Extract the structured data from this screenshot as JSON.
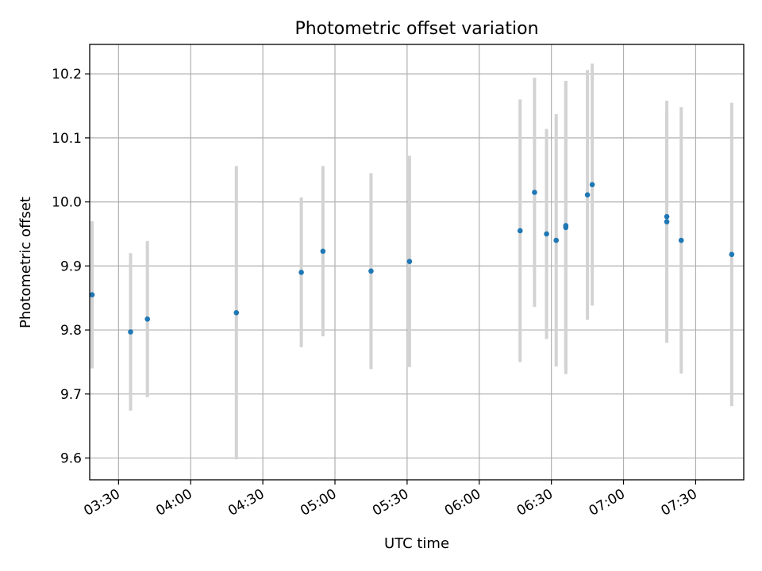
{
  "chart_data": {
    "type": "scatter",
    "title": "Photometric offset variation",
    "xlabel": "UTC time",
    "ylabel": "Photometric offset",
    "x_unit": "HH:MM",
    "xlim": [
      "03:18",
      "07:50"
    ],
    "ylim": [
      9.566,
      10.246
    ],
    "x_ticks": [
      "03:30",
      "04:00",
      "04:30",
      "05:00",
      "05:30",
      "06:00",
      "06:30",
      "07:00",
      "07:30"
    ],
    "y_ticks": [
      9.6,
      9.7,
      9.8,
      9.9,
      10.0,
      10.1,
      10.2
    ],
    "y_tick_labels": [
      "9.6",
      "9.7",
      "9.8",
      "9.9",
      "10.0",
      "10.1",
      "10.2"
    ],
    "grid": true,
    "point_color": "#1f77b4",
    "errorbar_color": "#d3d3d3",
    "points": [
      {
        "time": "03:19",
        "value": 9.855,
        "error": 0.115
      },
      {
        "time": "03:35",
        "value": 9.797,
        "error": 0.123
      },
      {
        "time": "03:42",
        "value": 9.817,
        "error": 0.122
      },
      {
        "time": "04:19",
        "value": 9.827,
        "error": 0.229
      },
      {
        "time": "04:46",
        "value": 9.89,
        "error": 0.117
      },
      {
        "time": "04:55",
        "value": 9.923,
        "error": 0.133
      },
      {
        "time": "05:15",
        "value": 9.892,
        "error": 0.153
      },
      {
        "time": "05:31",
        "value": 9.907,
        "error": 0.165
      },
      {
        "time": "06:17",
        "value": 9.955,
        "error": 0.205
      },
      {
        "time": "06:23",
        "value": 10.015,
        "error": 0.179
      },
      {
        "time": "06:28",
        "value": 9.95,
        "error": 0.164
      },
      {
        "time": "06:32",
        "value": 9.94,
        "error": 0.197
      },
      {
        "time": "06:36",
        "value": 9.96,
        "error": 0.229
      },
      {
        "time": "06:36",
        "value": 9.963,
        "error": 0.226
      },
      {
        "time": "06:45",
        "value": 10.011,
        "error": 0.195
      },
      {
        "time": "06:47",
        "value": 10.027,
        "error": 0.189
      },
      {
        "time": "07:18",
        "value": 9.977,
        "error": 0.164
      },
      {
        "time": "07:18",
        "value": 9.969,
        "error": 0.189
      },
      {
        "time": "07:24",
        "value": 9.94,
        "error": 0.208
      },
      {
        "time": "07:45",
        "value": 9.918,
        "error": 0.237
      }
    ]
  }
}
